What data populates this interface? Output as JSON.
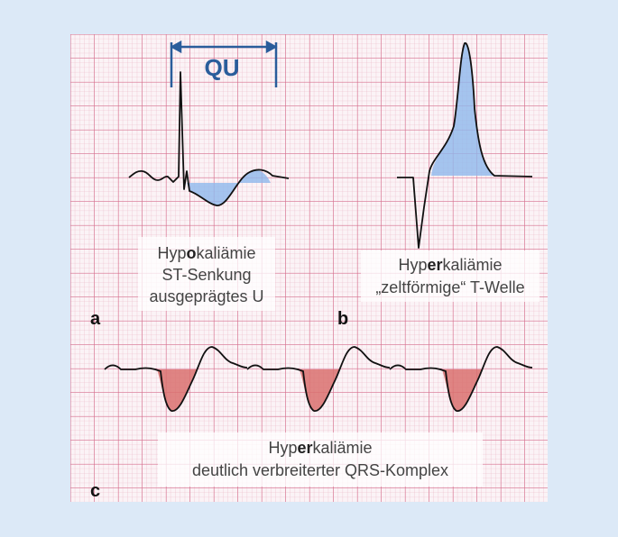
{
  "panel_a": {
    "interval_label": "QU",
    "title": {
      "parts": [
        "Hyp",
        "o",
        "kaliämie"
      ]
    },
    "lines": [
      "ST-Senkung",
      "ausgeprägtes U"
    ],
    "letter": "a"
  },
  "panel_b": {
    "title": {
      "parts": [
        "Hyp",
        "er",
        "kaliämie"
      ]
    },
    "lines": [
      "„zeltförmige“ T-Welle"
    ],
    "letter": "b"
  },
  "panel_c": {
    "title": {
      "parts": [
        "Hyp",
        "er",
        "kaliämie"
      ]
    },
    "lines": [
      "deutlich verbreiterter QRS-Komplex"
    ],
    "letter": "c"
  }
}
